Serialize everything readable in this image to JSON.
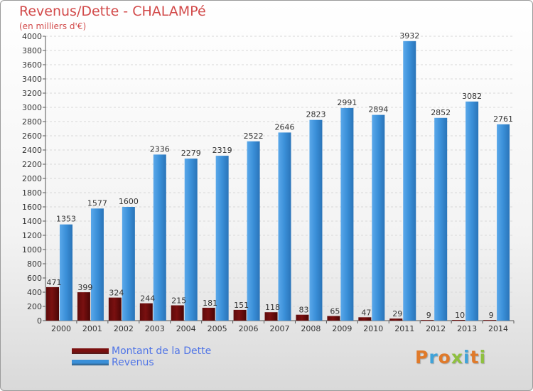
{
  "title": "Revenus/Dette - CHALAMPé",
  "subtitle": "(en milliers d'€)",
  "chart_data": {
    "type": "bar",
    "title": "Revenus/Dette - CHALAMPé",
    "subtitle": "(en milliers d'€)",
    "categories": [
      "2000",
      "2001",
      "2002",
      "2003",
      "2004",
      "2005",
      "2006",
      "2007",
      "2008",
      "2009",
      "2010",
      "2011",
      "2012",
      "2013",
      "2014"
    ],
    "series": [
      {
        "name": "Montant de la Dette",
        "color": "#7a1010",
        "values": [
          471,
          399,
          324,
          244,
          215,
          181,
          151,
          118,
          83,
          65,
          47,
          29,
          9,
          10,
          9
        ]
      },
      {
        "name": "Revenus",
        "color": "#3a8fd8",
        "values": [
          1353,
          1577,
          1600,
          2336,
          2279,
          2319,
          2522,
          2646,
          2823,
          2991,
          2894,
          3932,
          2852,
          3082,
          2761
        ]
      }
    ],
    "data_labels": {
      "Montant de la Dette": [
        "471",
        "399",
        "324",
        "244",
        "215",
        "181",
        "151",
        "118",
        "83",
        "65",
        "47",
        "29",
        "9",
        "10",
        "9"
      ],
      "Revenus": [
        "1353",
        "1577",
        "1600",
        "2336",
        "2279",
        "2319",
        "2522",
        "2646",
        "2823",
        "2991",
        "2894",
        "3932",
        "2852",
        "3082",
        "2761"
      ]
    },
    "ylim": [
      0,
      4000
    ],
    "yticks": [
      0,
      200,
      400,
      600,
      800,
      1000,
      1200,
      1400,
      1600,
      1800,
      2000,
      2200,
      2400,
      2600,
      2800,
      3000,
      3200,
      3400,
      3600,
      3800,
      4000
    ],
    "grid": true,
    "legend_position": "bottom-left"
  },
  "legend": [
    {
      "label": "Montant de la Dette",
      "color": "#7a1010"
    },
    {
      "label": "Revenus",
      "color": "#3a8fd8"
    }
  ],
  "logo": {
    "text": "Proxiti",
    "letters": [
      {
        "ch": "P",
        "color": "#e07a2a"
      },
      {
        "ch": "r",
        "color": "#3fa3d9"
      },
      {
        "ch": "o",
        "color": "#e07a2a"
      },
      {
        "ch": "x",
        "color": "#8fc040"
      },
      {
        "ch": "i",
        "color": "#3fa3d9"
      },
      {
        "ch": "t",
        "color": "#e07a2a"
      },
      {
        "ch": "i",
        "color": "#8fc040"
      }
    ]
  }
}
